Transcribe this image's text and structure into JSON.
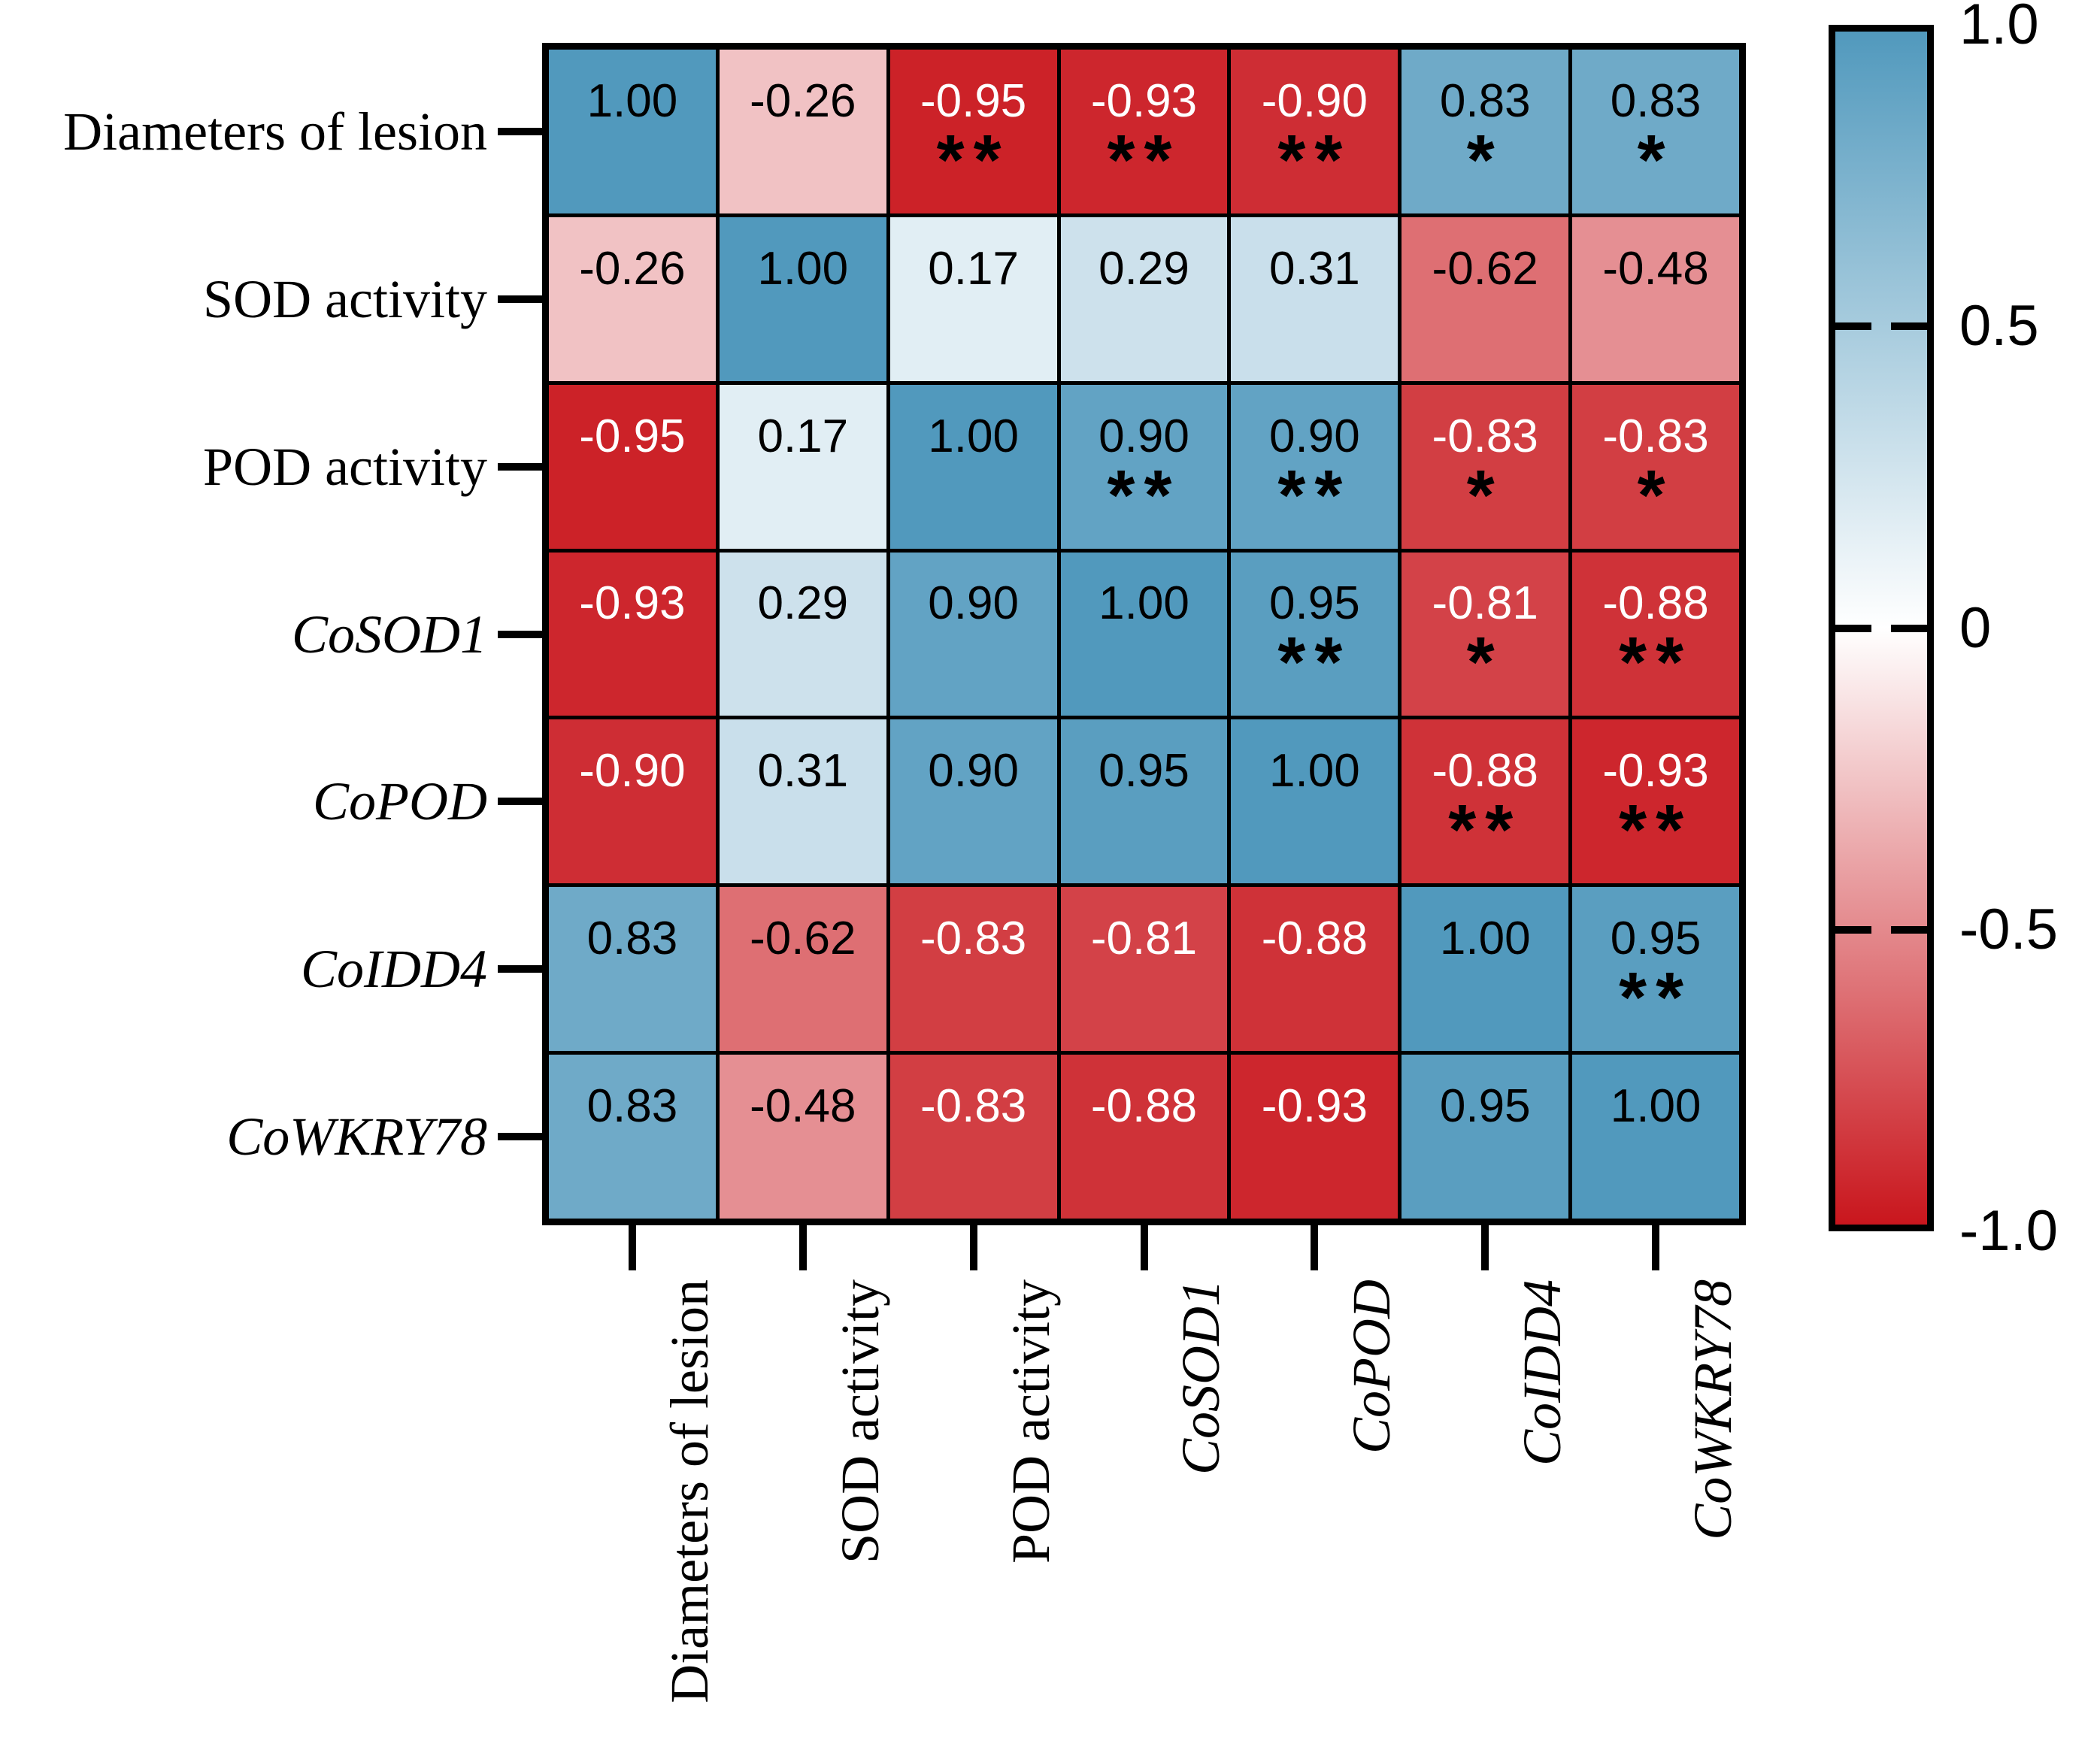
{
  "chart_data": {
    "type": "heatmap",
    "title": "",
    "variables": [
      "Diameters of lesion",
      "SOD activity",
      "POD activity",
      "CoSOD1",
      "CoPOD",
      "CoIDD4",
      "CoWKRY78"
    ],
    "variable_styles": [
      "normal",
      "normal",
      "normal",
      "italic",
      "italic",
      "italic",
      "italic"
    ],
    "matrix": [
      [
        1.0,
        -0.26,
        -0.95,
        -0.93,
        -0.9,
        0.83,
        0.83
      ],
      [
        -0.26,
        1.0,
        0.17,
        0.29,
        0.31,
        -0.62,
        -0.48
      ],
      [
        -0.95,
        0.17,
        1.0,
        0.9,
        0.9,
        -0.83,
        -0.83
      ],
      [
        -0.93,
        0.29,
        0.9,
        1.0,
        0.95,
        -0.81,
        -0.88
      ],
      [
        -0.9,
        0.31,
        0.9,
        0.95,
        1.0,
        -0.88,
        -0.93
      ],
      [
        0.83,
        -0.62,
        -0.83,
        -0.81,
        -0.88,
        1.0,
        0.95
      ],
      [
        0.83,
        -0.48,
        -0.83,
        -0.88,
        -0.93,
        0.95,
        1.0
      ]
    ],
    "significance": [
      [
        "",
        "",
        "**",
        "**",
        "**",
        "*",
        "*"
      ],
      [
        "",
        "",
        "",
        "",
        "",
        "",
        ""
      ],
      [
        "",
        "",
        "",
        "**",
        "**",
        "*",
        "*"
      ],
      [
        "",
        "",
        "",
        "",
        "**",
        "*",
        "**"
      ],
      [
        "",
        "",
        "",
        "",
        "",
        "**",
        "**"
      ],
      [
        "",
        "",
        "",
        "",
        "",
        "",
        "**"
      ],
      [
        "",
        "",
        "",
        "",
        "",
        "",
        ""
      ]
    ],
    "value_format_decimals": 2,
    "colorbar": {
      "tick_labels": [
        "1.0",
        "0.5",
        "0",
        "-0.5",
        "-1.0"
      ],
      "min": -1,
      "max": 1,
      "position": "right"
    },
    "colors": {
      "positive_end": "#5199BD",
      "zero": "#FFFFFF",
      "negative_end": "#C9161D",
      "grid_line": "#000000",
      "white_text_threshold": -0.8,
      "star_color": "#000000"
    },
    "grid": true
  }
}
